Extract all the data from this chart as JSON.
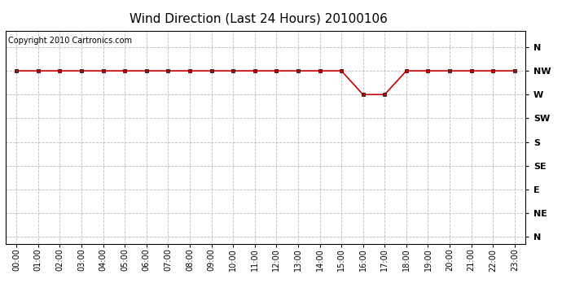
{
  "title": "Wind Direction (Last 24 Hours) 20100106",
  "copyright_text": "Copyright 2010 Cartronics.com",
  "line_color": "#cc0000",
  "marker": "s",
  "marker_size": 3,
  "background_color": "#ffffff",
  "grid_color": "#bbbbbb",
  "ytick_labels": [
    "N",
    "NW",
    "W",
    "SW",
    "S",
    "SE",
    "E",
    "NE",
    "N"
  ],
  "ytick_values": [
    8,
    7,
    6,
    5,
    4,
    3,
    2,
    1,
    0
  ],
  "hours": [
    0,
    1,
    2,
    3,
    4,
    5,
    6,
    7,
    8,
    9,
    10,
    11,
    12,
    13,
    14,
    15,
    16,
    17,
    18,
    19,
    20,
    21,
    22,
    23
  ],
  "wind_values": [
    7,
    7,
    7,
    7,
    7,
    7,
    7,
    7,
    7,
    7,
    7,
    7,
    7,
    7,
    7,
    7,
    6,
    6,
    7,
    7,
    7,
    7,
    7,
    7
  ],
  "ylim": [
    -0.3,
    8.7
  ],
  "xlim": [
    -0.5,
    23.5
  ],
  "title_fontsize": 11,
  "copyright_fontsize": 7,
  "tick_fontsize": 7,
  "ytick_fontsize": 8
}
